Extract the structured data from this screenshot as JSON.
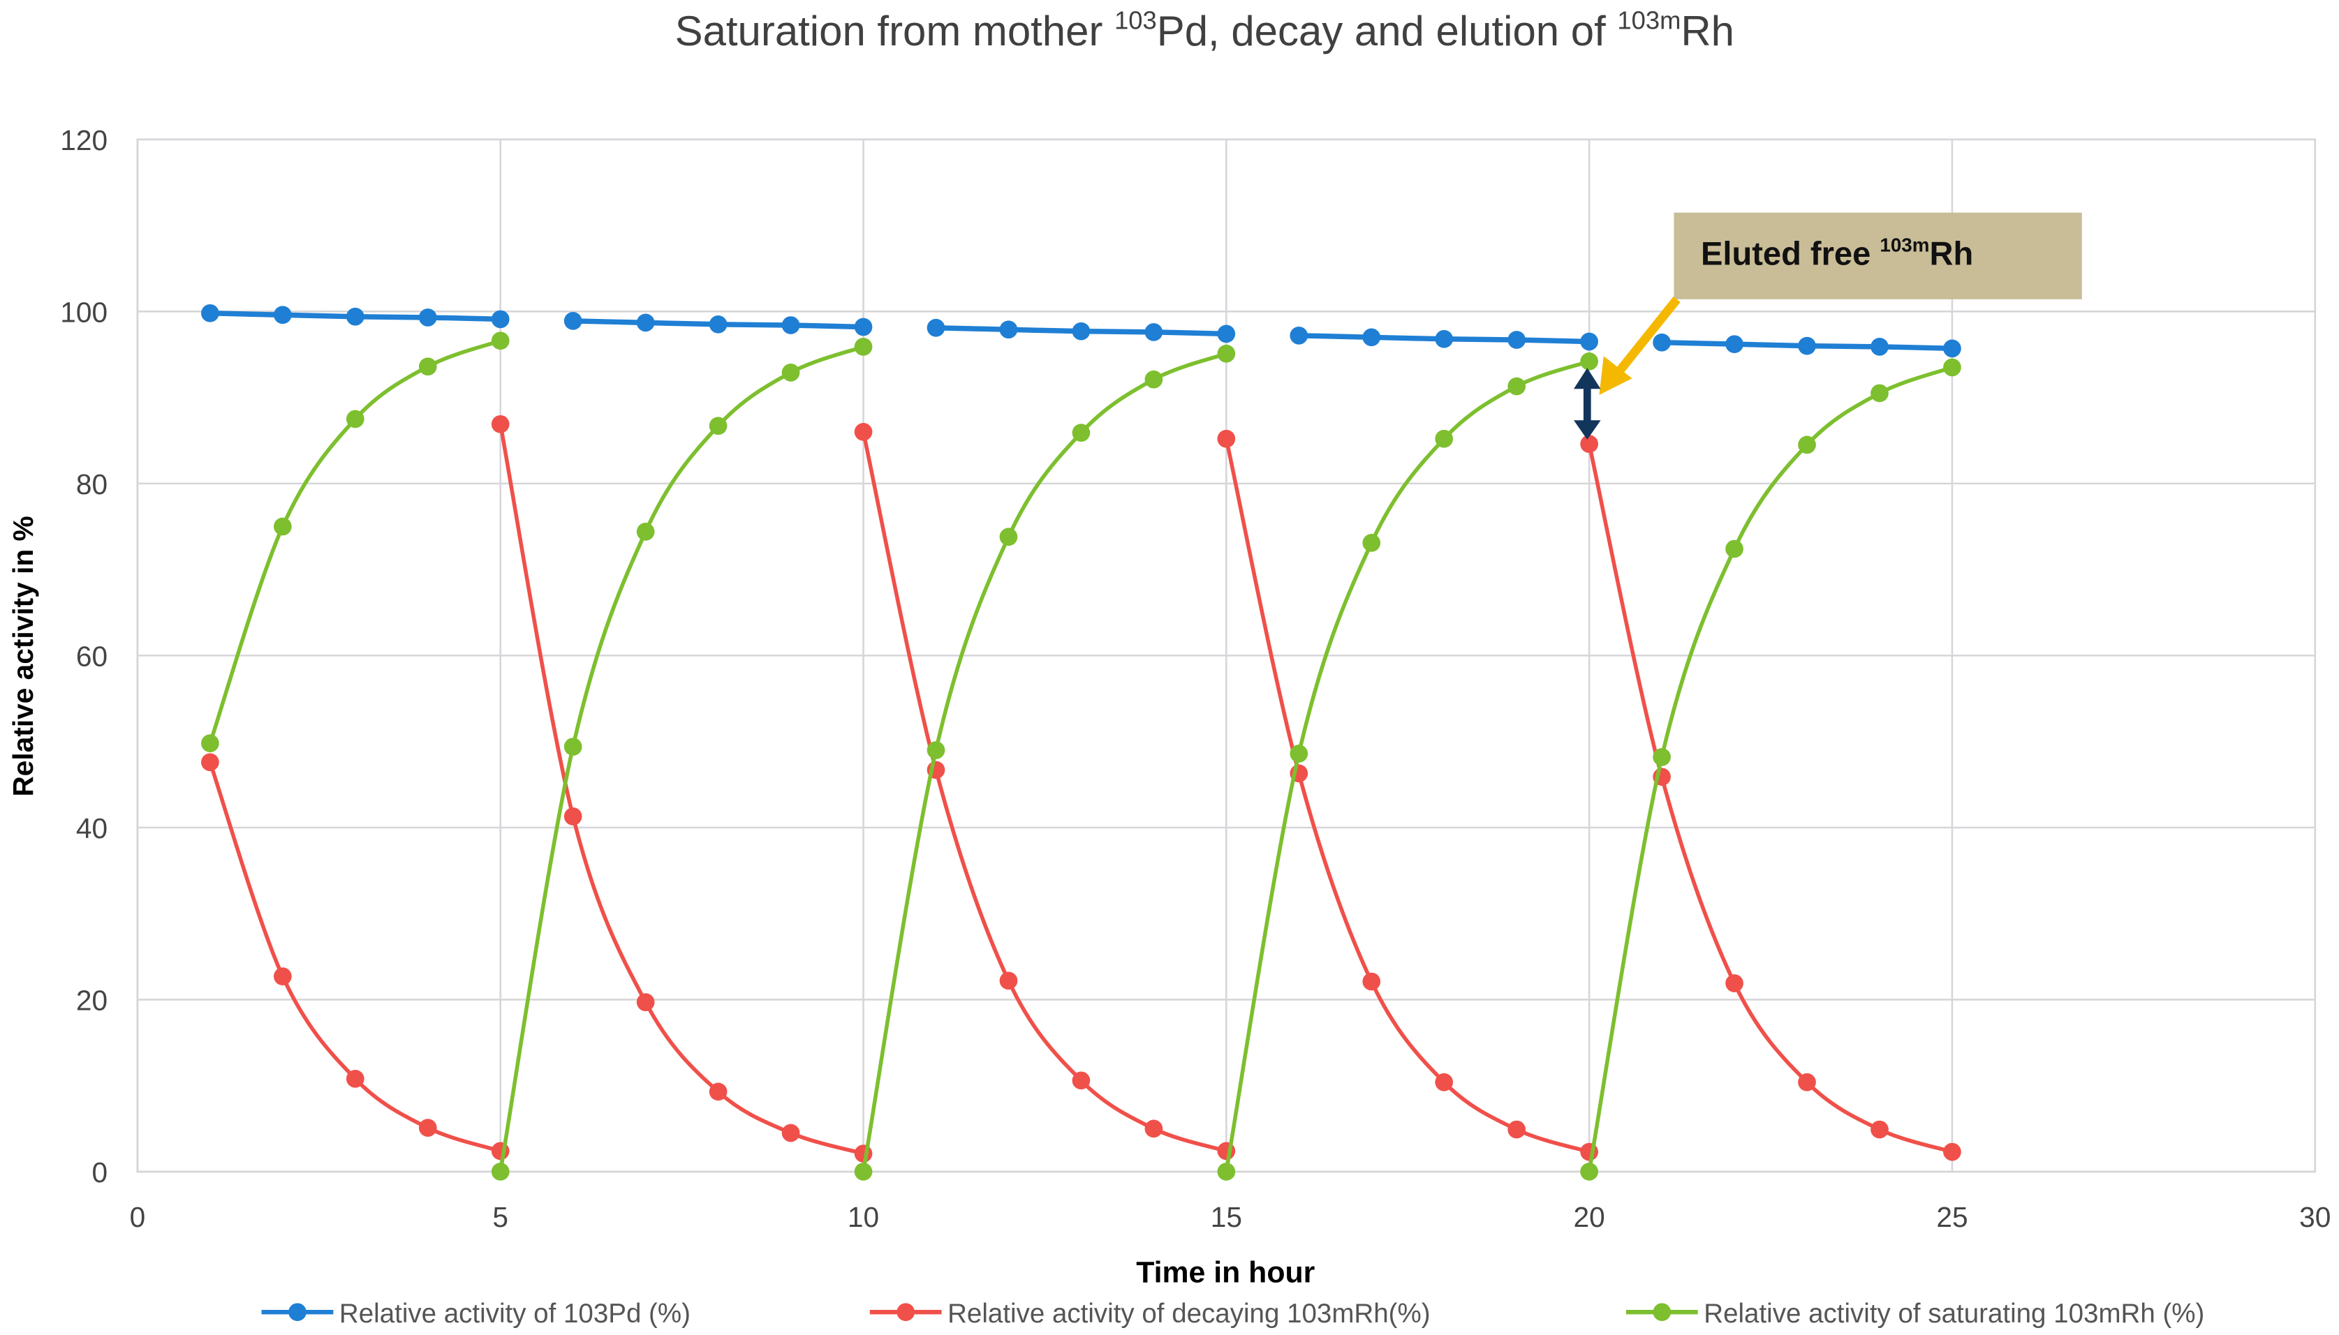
{
  "chart_data": {
    "type": "line",
    "title": "Saturation from mother",
    "title_parts": {
      "pre": "Saturation from mother ",
      "sup1": "103",
      "mid": "Pd, decay and elution of ",
      "sup2": "103m",
      "post": "Rh"
    },
    "xlabel": "Time in hour",
    "ylabel": "Relative activity in %",
    "xlim": [
      0,
      30
    ],
    "ylim": [
      0,
      120
    ],
    "xticks": [
      "0",
      "5",
      "10",
      "15",
      "20",
      "25",
      "30"
    ],
    "yticks": [
      "0",
      "20",
      "40",
      "60",
      "80",
      "100",
      "120"
    ],
    "grid": true,
    "legend_position": "bottom",
    "series": [
      {
        "name": "Relative activity of 103Pd (%)",
        "color": "#1f7fd4",
        "segments": [
          [
            [
              1,
              99.8
            ],
            [
              2,
              99.6
            ],
            [
              3,
              99.4
            ],
            [
              4,
              99.3
            ],
            [
              5,
              99.1
            ]
          ],
          [
            [
              6,
              98.9
            ],
            [
              7,
              98.7
            ],
            [
              8,
              98.5
            ],
            [
              9,
              98.4
            ],
            [
              10,
              98.2
            ]
          ],
          [
            [
              11,
              98.1
            ],
            [
              12,
              97.9
            ],
            [
              13,
              97.7
            ],
            [
              14,
              97.6
            ],
            [
              15,
              97.4
            ]
          ],
          [
            [
              16,
              97.2
            ],
            [
              17,
              97.0
            ],
            [
              18,
              96.8
            ],
            [
              19,
              96.7
            ],
            [
              20,
              96.5
            ]
          ],
          [
            [
              21,
              96.4
            ],
            [
              22,
              96.2
            ],
            [
              23,
              96.0
            ],
            [
              24,
              95.9
            ],
            [
              25,
              95.7
            ]
          ]
        ]
      },
      {
        "name": "Relative activity of decaying 103mRh(%)",
        "color": "#f0504a",
        "segments": [
          [
            [
              1,
              47.6
            ],
            [
              2,
              22.7
            ],
            [
              3,
              10.8
            ],
            [
              4,
              5.1
            ],
            [
              5,
              2.4
            ]
          ],
          [
            [
              5,
              86.9
            ],
            [
              6,
              41.3
            ],
            [
              7,
              19.7
            ],
            [
              8,
              9.3
            ],
            [
              9,
              4.5
            ],
            [
              10,
              2.1
            ]
          ],
          [
            [
              10,
              86.0
            ],
            [
              11,
              46.7
            ],
            [
              12,
              22.2
            ],
            [
              13,
              10.6
            ],
            [
              14,
              5.0
            ],
            [
              15,
              2.4
            ]
          ],
          [
            [
              15,
              85.2
            ],
            [
              16,
              46.3
            ],
            [
              17,
              22.1
            ],
            [
              18,
              10.4
            ],
            [
              19,
              4.9
            ],
            [
              20,
              2.3
            ]
          ],
          [
            [
              20,
              84.6
            ],
            [
              21,
              45.9
            ],
            [
              22,
              21.9
            ],
            [
              23,
              10.4
            ],
            [
              24,
              4.9
            ],
            [
              25,
              2.3
            ]
          ]
        ]
      },
      {
        "name": "Relative activity of saturating 103mRh (%)",
        "color": "#7dbf2e",
        "segments": [
          [
            [
              1,
              49.8
            ],
            [
              2,
              75.0
            ],
            [
              3,
              87.5
            ],
            [
              4,
              93.6
            ],
            [
              5,
              96.6
            ]
          ],
          [
            [
              5,
              0
            ],
            [
              6,
              49.4
            ],
            [
              7,
              74.4
            ],
            [
              8,
              86.7
            ],
            [
              9,
              92.9
            ],
            [
              10,
              95.9
            ]
          ],
          [
            [
              10,
              0
            ],
            [
              11,
              49.0
            ],
            [
              12,
              73.8
            ],
            [
              13,
              85.9
            ],
            [
              14,
              92.1
            ],
            [
              15,
              95.1
            ]
          ],
          [
            [
              15,
              0
            ],
            [
              16,
              48.6
            ],
            [
              17,
              73.1
            ],
            [
              18,
              85.2
            ],
            [
              19,
              91.3
            ],
            [
              20,
              94.2
            ]
          ],
          [
            [
              20,
              0
            ],
            [
              21,
              48.2
            ],
            [
              22,
              72.4
            ],
            [
              23,
              84.5
            ],
            [
              24,
              90.5
            ],
            [
              25,
              93.5
            ]
          ]
        ]
      }
    ],
    "annotation": {
      "pre": "Eluted free ",
      "sup": "103m",
      "post": "Rh",
      "box_color": "#c9bd97",
      "arrow_color": "#f5b800",
      "marker_color": "#12355b",
      "points_to_x": 20
    }
  }
}
